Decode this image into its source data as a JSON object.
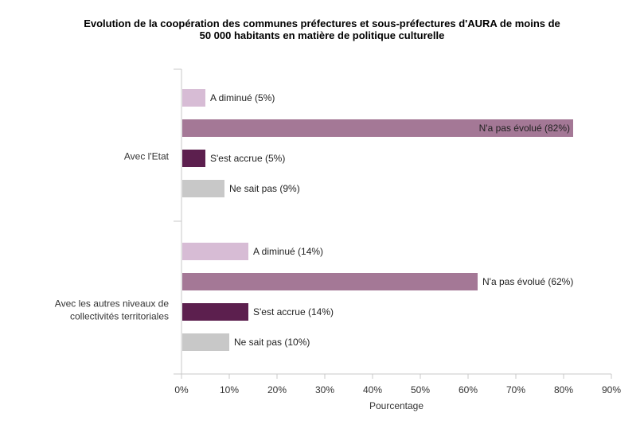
{
  "chart_data": {
    "type": "bar",
    "orientation": "horizontal",
    "title_lines": [
      "Evolution de la coopération des communes préfectures et sous-préfectures d'AURA de moins de",
      "50 000 habitants en matière de politique culturelle"
    ],
    "xlabel": "Pourcentage",
    "ylabel": "",
    "xlim": [
      0,
      90
    ],
    "xticks": [
      "0%",
      "10%",
      "20%",
      "30%",
      "40%",
      "50%",
      "60%",
      "70%",
      "80%",
      "90%"
    ],
    "groups": [
      {
        "category_lines": [
          "Avec l'Etat"
        ],
        "bars": [
          {
            "label": "A diminué (5%)",
            "value": 5,
            "color": "#d7bcd5"
          },
          {
            "label": "N'a pas évolué (82%)",
            "value": 82,
            "color": "#a47896"
          },
          {
            "label": "S'est accrue (5%)",
            "value": 5,
            "color": "#5c1f4e"
          },
          {
            "label": "Ne sait pas (9%)",
            "value": 9,
            "color": "#c8c8c8"
          }
        ]
      },
      {
        "category_lines": [
          "Avec les autres niveaux de",
          "collectivités territoriales"
        ],
        "bars": [
          {
            "label": "A diminué (14%)",
            "value": 14,
            "color": "#d7bcd5"
          },
          {
            "label": "N'a pas évolué (62%)",
            "value": 62,
            "color": "#a47896"
          },
          {
            "label": "S'est accrue (14%)",
            "value": 14,
            "color": "#5c1f4e"
          },
          {
            "label": "Ne sait pas (10%)",
            "value": 10,
            "color": "#c8c8c8"
          }
        ]
      }
    ]
  }
}
